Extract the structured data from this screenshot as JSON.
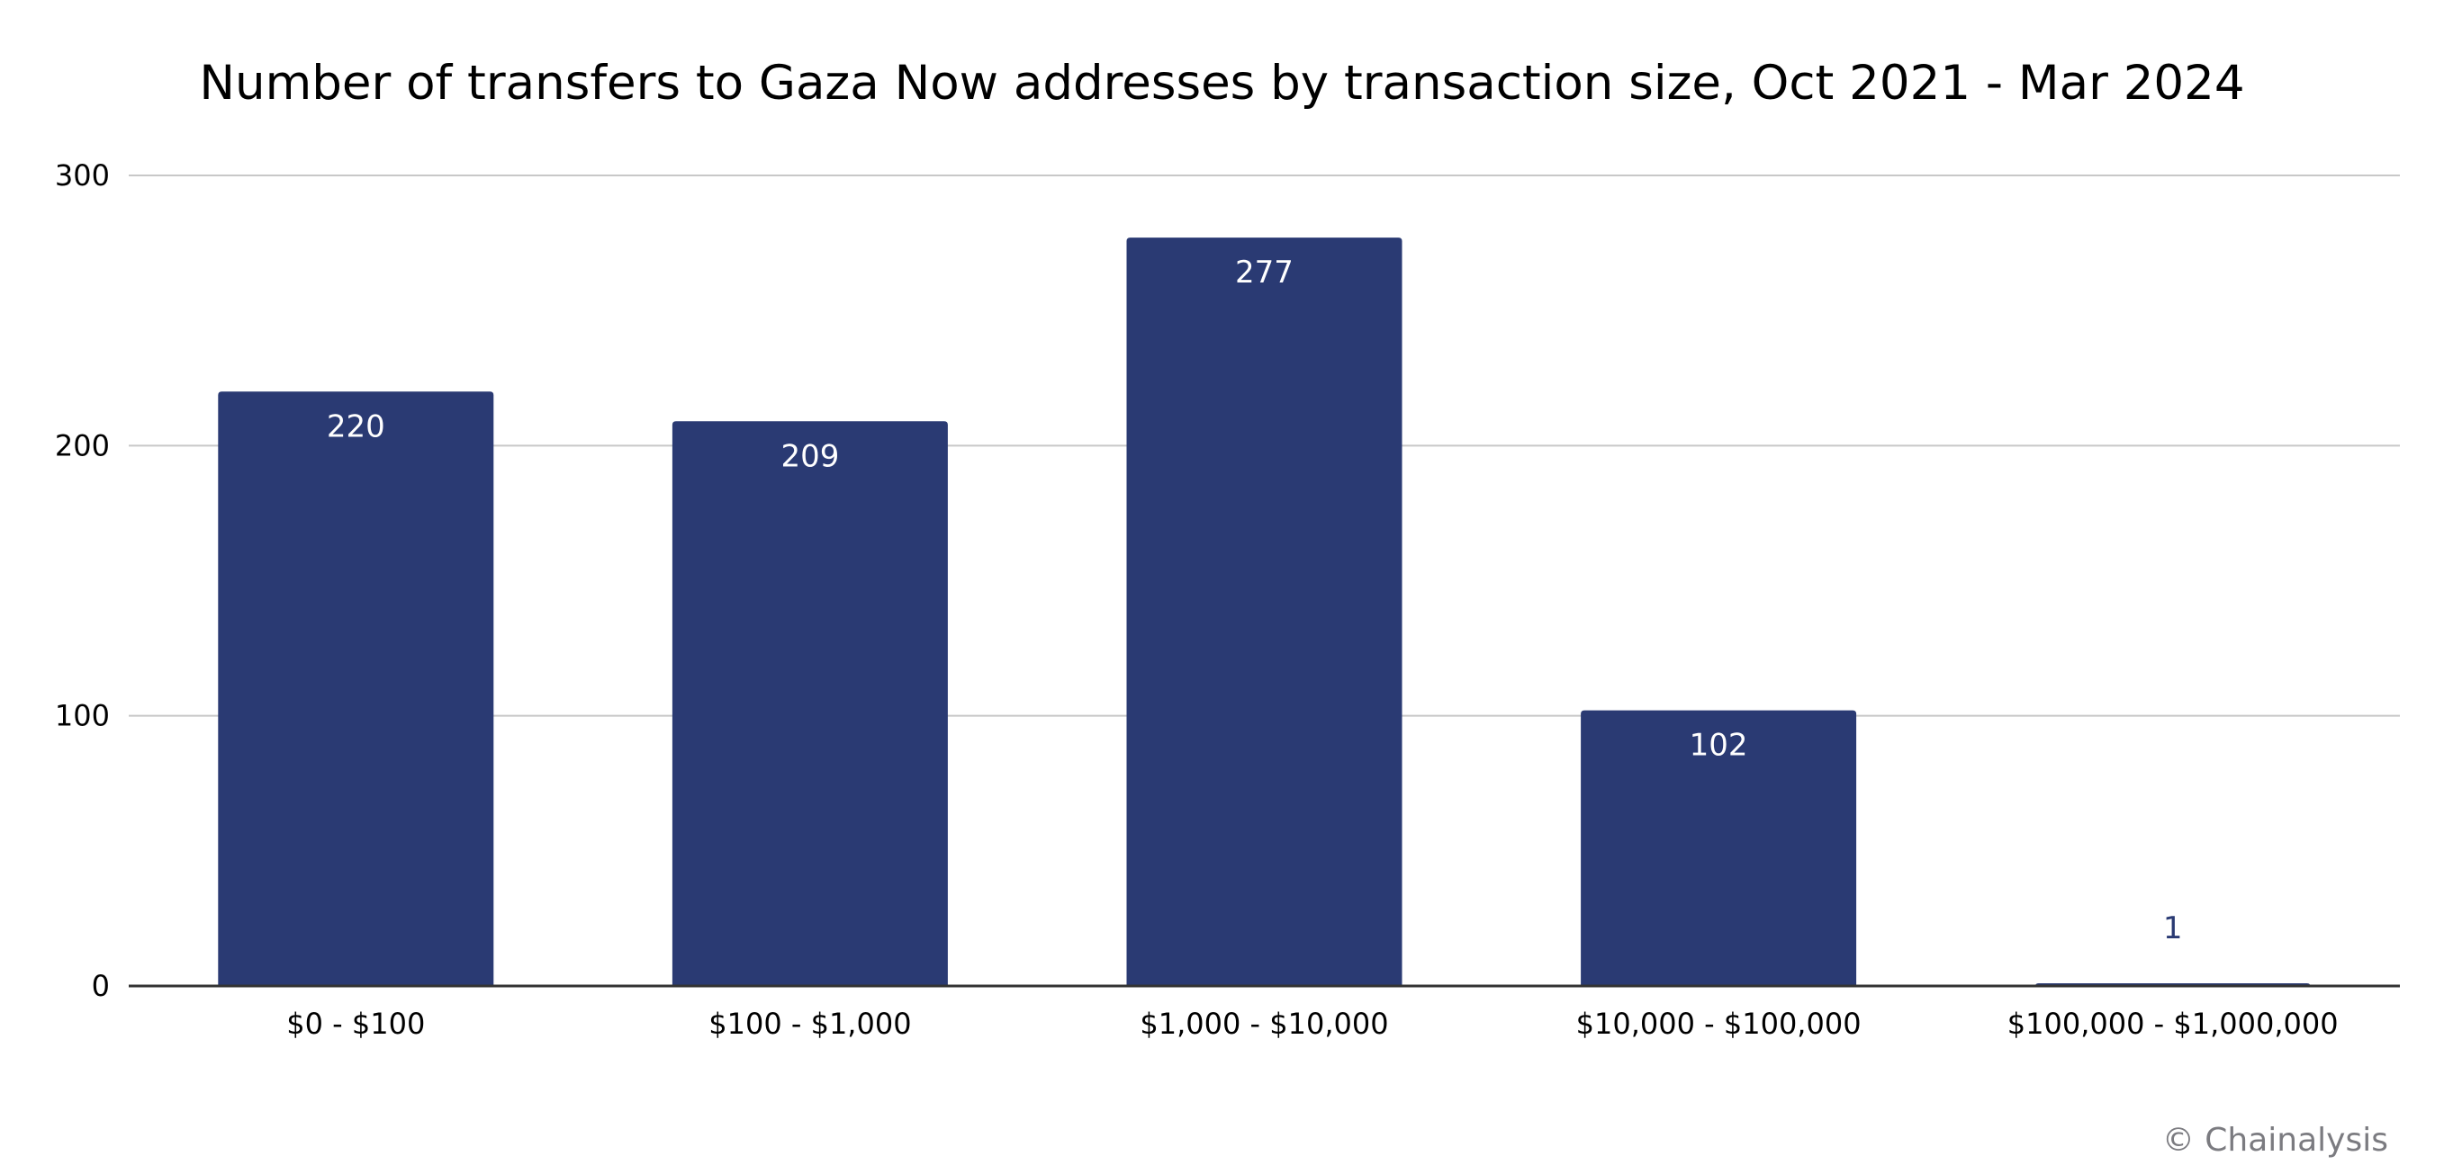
{
  "chart_data": {
    "type": "bar",
    "title": "Number of transfers to Gaza Now addresses by transaction size, Oct 2021 - Mar 2024",
    "categories": [
      "$0 - $100",
      "$100 - $1,000",
      "$1,000 - $10,000",
      "$10,000 - $100,000",
      "$100,000 - $1,000,000"
    ],
    "values": [
      220,
      209,
      277,
      102,
      1
    ],
    "data_labels": [
      "220",
      "209",
      "277",
      "102",
      "1"
    ],
    "xlabel": "",
    "ylabel": "",
    "ylim": [
      0,
      300
    ],
    "yticks": [
      0,
      100,
      200,
      300
    ],
    "ytick_labels": [
      "0",
      "100",
      "200",
      "300"
    ],
    "grid": true,
    "legend": "none",
    "bar_color": "#2a3a73",
    "credit": "© Chainalysis"
  }
}
